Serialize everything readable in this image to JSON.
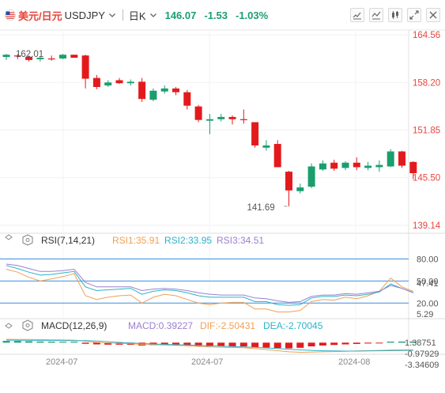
{
  "header": {
    "pair_cn": "美元/日元",
    "pair_code": "USDJPY",
    "period": "日K",
    "price": "146.07",
    "change": "-1.53",
    "change_pct": "-1.03%"
  },
  "colors": {
    "up": "#1a9e6e",
    "down": "#e31a1c",
    "rsi1": "#f0a054",
    "rsi2": "#2bb3c9",
    "rsi3": "#9b7fd0",
    "dif": "#f0a054",
    "dea": "#2bb3c9",
    "hline": "#3b8ee0"
  },
  "chart_data": [
    {
      "type": "candlestick",
      "yticks": [
        "164.56",
        "158.20",
        "151.85",
        "145.50",
        "139.14"
      ],
      "yvals": [
        164.56,
        158.2,
        151.85,
        145.5,
        139.14
      ],
      "ylim": [
        139.14,
        164.56
      ],
      "xlabels": [
        "2024-07",
        "2024-07",
        "2024-08"
      ],
      "annotations": [
        {
          "text": "162.01",
          "value": 162.01
        },
        {
          "text": "141.69",
          "value": 141.69
        }
      ],
      "candles": [
        [
          161.6,
          162.0,
          161.2,
          161.9
        ],
        [
          161.8,
          162.0,
          161.3,
          161.7
        ],
        [
          161.6,
          161.8,
          161.0,
          161.2
        ],
        [
          161.3,
          161.7,
          161.0,
          161.5
        ],
        [
          161.4,
          161.8,
          161.1,
          161.3
        ],
        [
          161.4,
          162.0,
          161.3,
          161.9
        ],
        [
          161.9,
          161.9,
          161.5,
          161.5
        ],
        [
          161.8,
          161.9,
          157.4,
          158.7
        ],
        [
          158.8,
          159.2,
          157.3,
          157.6
        ],
        [
          157.8,
          158.5,
          157.6,
          158.2
        ],
        [
          158.5,
          158.8,
          158.0,
          158.1
        ],
        [
          158.1,
          158.6,
          157.8,
          158.3
        ],
        [
          158.3,
          158.8,
          155.6,
          156.0
        ],
        [
          155.9,
          157.4,
          155.7,
          157.1
        ],
        [
          157.0,
          157.8,
          156.7,
          157.4
        ],
        [
          157.4,
          157.6,
          156.5,
          156.9
        ],
        [
          156.9,
          157.2,
          154.6,
          155.1
        ],
        [
          155.0,
          155.2,
          152.9,
          153.2
        ],
        [
          153.1,
          154.0,
          151.3,
          153.3
        ],
        [
          153.3,
          154.0,
          153.0,
          153.6
        ],
        [
          153.6,
          153.8,
          152.6,
          153.3
        ],
        [
          153.3,
          154.6,
          152.7,
          153.2
        ],
        [
          152.9,
          152.9,
          149.5,
          149.8
        ],
        [
          149.5,
          150.5,
          149.1,
          149.8
        ],
        [
          150.0,
          150.5,
          146.9,
          146.9
        ],
        [
          146.3,
          146.4,
          141.69,
          143.8
        ],
        [
          143.7,
          144.7,
          143.4,
          144.2
        ],
        [
          144.3,
          147.4,
          144.1,
          147.0
        ],
        [
          146.6,
          147.8,
          146.4,
          147.4
        ],
        [
          147.5,
          147.9,
          146.4,
          146.7
        ],
        [
          146.8,
          147.7,
          146.5,
          147.5
        ],
        [
          147.5,
          148.2,
          146.5,
          146.9
        ],
        [
          146.8,
          147.6,
          146.5,
          147.1
        ],
        [
          146.9,
          147.8,
          146.3,
          147.2
        ],
        [
          147.0,
          149.3,
          146.9,
          149.0
        ],
        [
          149.0,
          149.1,
          146.8,
          147.1
        ],
        [
          147.6,
          147.7,
          145.3,
          146.1
        ]
      ]
    },
    {
      "type": "line",
      "name": "RSI",
      "label": "RSI(7,14,21)",
      "series_labels": [
        "RSI1:35.91",
        "RSI2:33.95",
        "RSI3:34.51"
      ],
      "yticks": [
        "80.00",
        "50.00",
        "47.41",
        "20.00",
        "5.29"
      ],
      "yvals": [
        80.0,
        50.0,
        47.41,
        20.0,
        5.29
      ],
      "ylim": [
        5.29,
        88
      ],
      "hlines": [
        80,
        50,
        20
      ],
      "series": [
        {
          "values": [
            66,
            62,
            55,
            50,
            53,
            56,
            60,
            30,
            25,
            28,
            30,
            31,
            20,
            28,
            32,
            30,
            25,
            20,
            18,
            20,
            21,
            21,
            12,
            12,
            8,
            8,
            10,
            22,
            25,
            24,
            28,
            26,
            30,
            36,
            54,
            42,
            35.91
          ]
        },
        {
          "values": [
            71,
            67,
            62,
            58,
            59,
            61,
            63,
            42,
            37,
            38,
            39,
            40,
            32,
            36,
            38,
            37,
            34,
            30,
            28,
            28,
            28,
            28,
            22,
            22,
            18,
            17,
            18,
            27,
            29,
            29,
            31,
            30,
            32,
            35,
            46,
            40,
            33.95
          ]
        },
        {
          "values": [
            73,
            71,
            67,
            63,
            63,
            64,
            66,
            48,
            42,
            42,
            42,
            42,
            37,
            39,
            40,
            39,
            37,
            34,
            32,
            31,
            31,
            31,
            27,
            26,
            23,
            21,
            22,
            29,
            31,
            31,
            33,
            32,
            34,
            36,
            44,
            40,
            34.51
          ]
        }
      ]
    },
    {
      "type": "bar+line",
      "name": "MACD",
      "label": "MACD(12,26,9)",
      "series_labels": [
        "MACD:0.39227",
        "DIF:-2.50431",
        "DEA:-2.70045"
      ],
      "yticks": [
        "1.38751",
        "-0.97929",
        "-3.34609"
      ],
      "yvals": [
        1.38751,
        -0.97929,
        -3.34609
      ],
      "ylim": [
        -3.5,
        2.3
      ],
      "macd": [
        0.6,
        0.6,
        0.5,
        0.4,
        0.35,
        0.3,
        0.3,
        -0.4,
        -0.6,
        -0.7,
        -0.7,
        -0.75,
        -1.0,
        -0.9,
        -0.85,
        -0.9,
        -1.0,
        -1.2,
        -1.3,
        -1.3,
        -1.3,
        -1.3,
        -1.6,
        -1.7,
        -1.9,
        -2.0,
        -1.8,
        -1.3,
        -1.0,
        -0.8,
        -0.6,
        -0.45,
        -0.3,
        -0.15,
        0.35,
        0.38,
        0.39
      ],
      "dif": [
        1.2,
        1.15,
        1.1,
        1.05,
        1.0,
        0.95,
        0.9,
        0.5,
        0.1,
        -0.1,
        -0.25,
        -0.4,
        -0.6,
        -0.75,
        -0.85,
        -0.95,
        -1.1,
        -1.3,
        -1.5,
        -1.6,
        -1.7,
        -1.8,
        -2.1,
        -2.4,
        -2.8,
        -3.2,
        -3.35,
        -3.3,
        -3.2,
        -3.1,
        -3.0,
        -2.9,
        -2.8,
        -2.7,
        -2.55,
        -2.5,
        -2.50431
      ],
      "dea": [
        0.9,
        0.85,
        0.82,
        0.8,
        0.78,
        0.75,
        0.72,
        0.7,
        0.55,
        0.35,
        0.1,
        -0.1,
        -0.3,
        -0.45,
        -0.6,
        -0.7,
        -0.8,
        -0.95,
        -1.1,
        -1.2,
        -1.35,
        -1.5,
        -1.65,
        -1.85,
        -2.05,
        -2.3,
        -2.5,
        -2.7,
        -2.85,
        -2.9,
        -2.95,
        -2.95,
        -2.9,
        -2.85,
        -2.8,
        -2.75,
        -2.70045
      ]
    }
  ]
}
